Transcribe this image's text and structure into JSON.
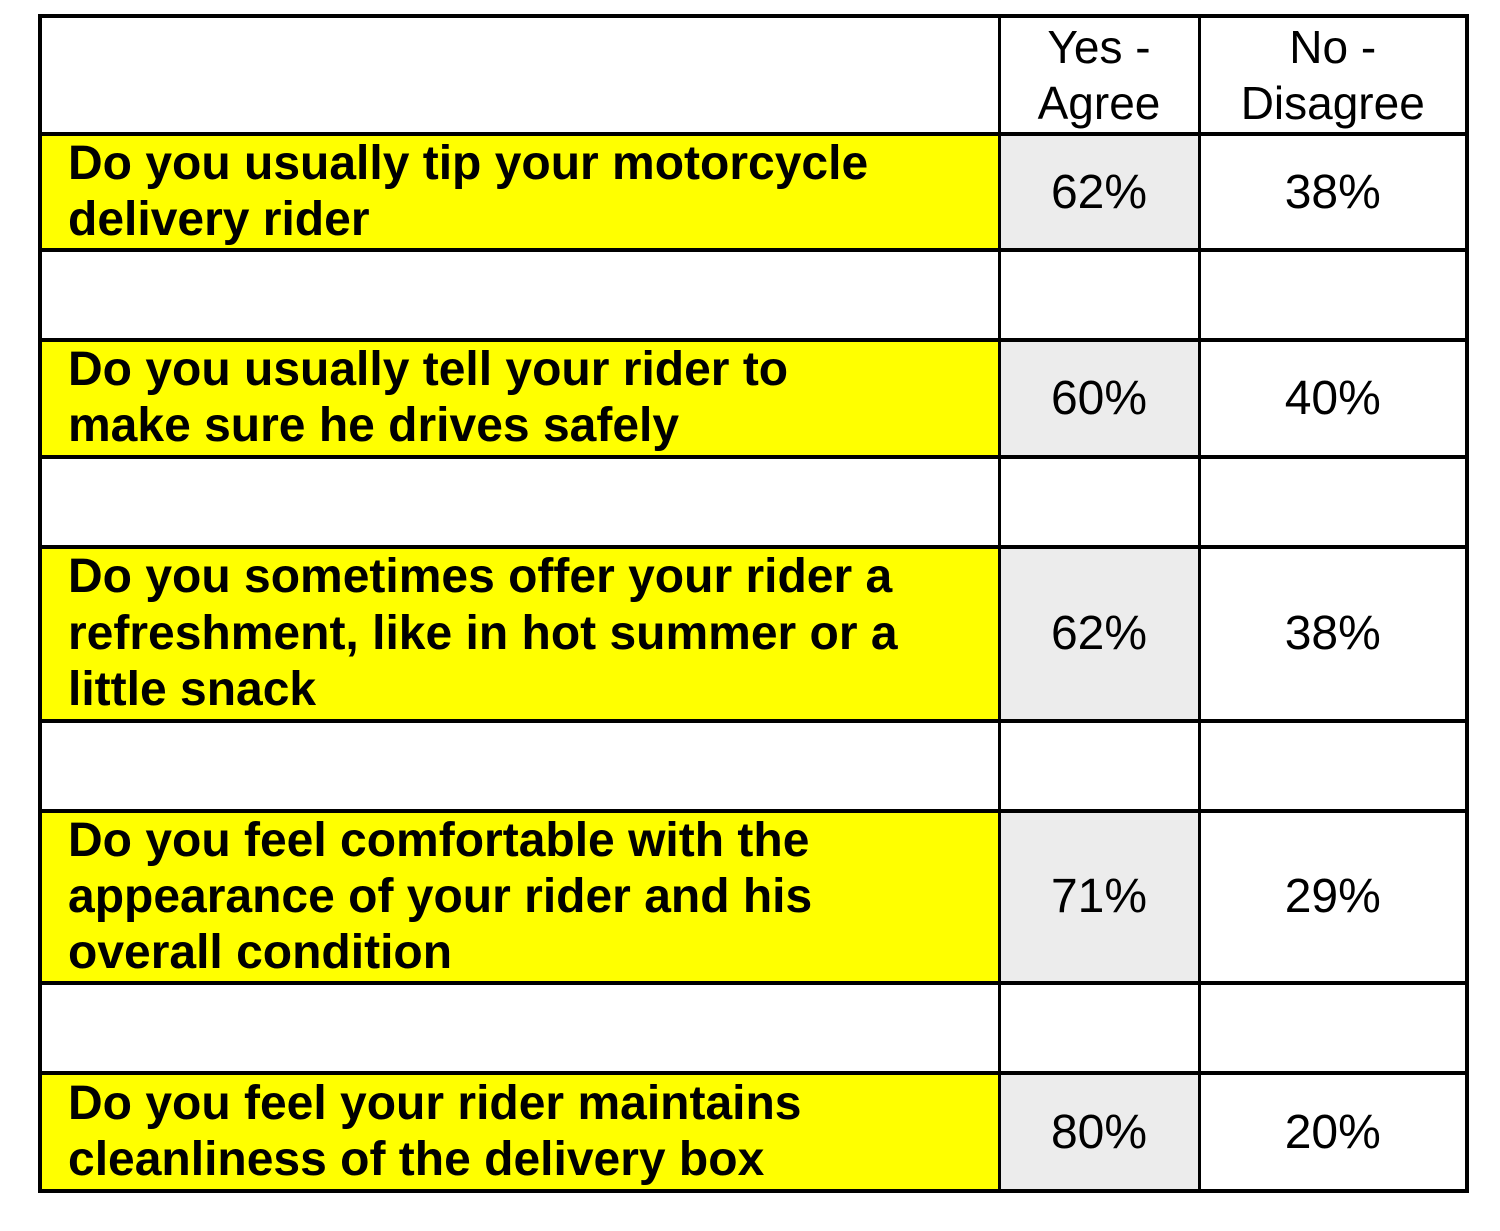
{
  "table": {
    "title_semantic": "Motorcycle delivery rider survey results",
    "header": {
      "question_col": "",
      "yes_col": "Yes -\nAgree",
      "no_col": "No -\nDisagree"
    },
    "rows": [
      {
        "question": "Do you usually tip your motorcycle\ndelivery rider",
        "yes": "62%",
        "no": "38%"
      },
      {
        "question": "Do you usually tell your rider to\nmake sure he drives safely",
        "yes": "60%",
        "no": "40%"
      },
      {
        "question": "Do you sometimes offer your rider a\nrefreshment, like in hot summer or a\nlittle snack",
        "yes": "62%",
        "no": "38%"
      },
      {
        "question": "Do you feel comfortable with the\nappearance of your rider and his\noverall condition",
        "yes": "71%",
        "no": "29%"
      },
      {
        "question": "Do you feel your rider maintains\ncleanliness of the delivery box",
        "yes": "80%",
        "no": "20%"
      }
    ],
    "colors": {
      "question_highlight": "#ffff00",
      "yes_cell_background": "#ececec",
      "border": "#000000",
      "text": "#000000",
      "page_background": "#ffffff"
    }
  }
}
